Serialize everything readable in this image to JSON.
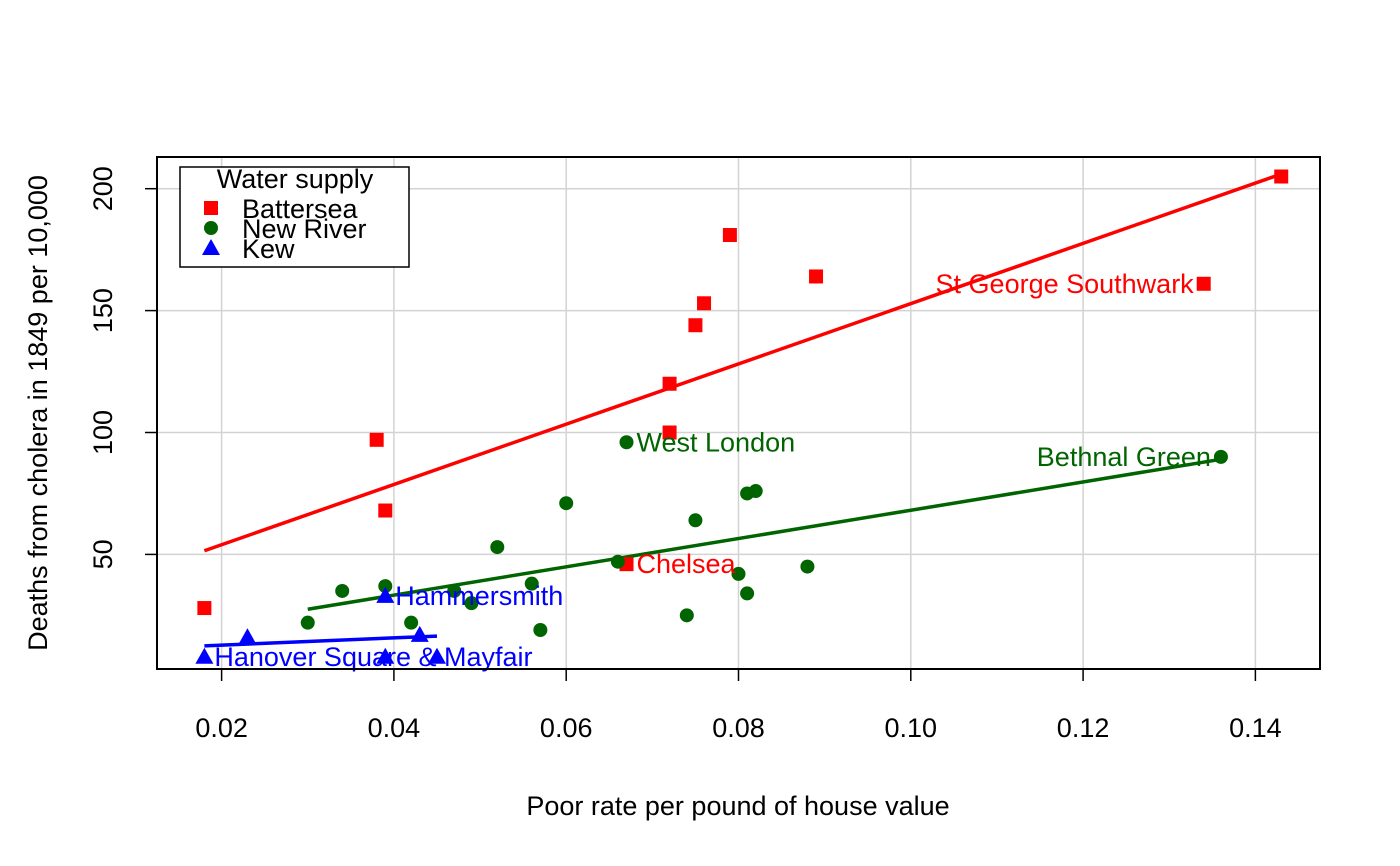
{
  "chart_data": {
    "type": "scatter",
    "title": "",
    "xlabel": "Poor rate per pound of house value",
    "ylabel": "Deaths from cholera in 1849 per 10,000",
    "xlim": [
      0.0125,
      0.1475
    ],
    "ylim": [
      3,
      213
    ],
    "xticks": [
      0.02,
      0.04,
      0.06,
      0.08,
      0.1,
      0.12,
      0.14
    ],
    "xtick_labels": [
      "0.02",
      "0.04",
      "0.06",
      "0.08",
      "0.10",
      "0.12",
      "0.14"
    ],
    "yticks": [
      50,
      100,
      150,
      200
    ],
    "ytick_labels": [
      "50",
      "100",
      "150",
      "200"
    ],
    "grid": true,
    "legend": {
      "title": "Water supply",
      "position": "top-left",
      "entries": [
        "Battersea",
        "New River",
        "Kew"
      ]
    },
    "series": [
      {
        "name": "Battersea",
        "color": "#ff0000",
        "marker": "square",
        "points": [
          {
            "x": 0.018,
            "y": 28
          },
          {
            "x": 0.038,
            "y": 97
          },
          {
            "x": 0.039,
            "y": 68
          },
          {
            "x": 0.067,
            "y": 46,
            "label": "Chelsea"
          },
          {
            "x": 0.072,
            "y": 100
          },
          {
            "x": 0.072,
            "y": 120
          },
          {
            "x": 0.075,
            "y": 144
          },
          {
            "x": 0.076,
            "y": 153
          },
          {
            "x": 0.079,
            "y": 181
          },
          {
            "x": 0.089,
            "y": 164
          },
          {
            "x": 0.134,
            "y": 161,
            "label": "St George Southwark"
          },
          {
            "x": 0.143,
            "y": 205
          }
        ],
        "fit": {
          "x": [
            0.018,
            0.143
          ],
          "y": [
            51.5,
            206
          ]
        }
      },
      {
        "name": "New River",
        "color": "#006400",
        "marker": "circle",
        "points": [
          {
            "x": 0.03,
            "y": 22
          },
          {
            "x": 0.034,
            "y": 35
          },
          {
            "x": 0.039,
            "y": 37
          },
          {
            "x": 0.042,
            "y": 22
          },
          {
            "x": 0.047,
            "y": 35
          },
          {
            "x": 0.049,
            "y": 30
          },
          {
            "x": 0.052,
            "y": 53
          },
          {
            "x": 0.056,
            "y": 38
          },
          {
            "x": 0.057,
            "y": 19
          },
          {
            "x": 0.06,
            "y": 71
          },
          {
            "x": 0.066,
            "y": 47
          },
          {
            "x": 0.067,
            "y": 96,
            "label": "West London"
          },
          {
            "x": 0.074,
            "y": 25
          },
          {
            "x": 0.075,
            "y": 64
          },
          {
            "x": 0.08,
            "y": 42
          },
          {
            "x": 0.081,
            "y": 34
          },
          {
            "x": 0.081,
            "y": 75
          },
          {
            "x": 0.082,
            "y": 76
          },
          {
            "x": 0.088,
            "y": 45
          },
          {
            "x": 0.136,
            "y": 90,
            "label": "Bethnal Green"
          }
        ],
        "fit": {
          "x": [
            0.03,
            0.136
          ],
          "y": [
            27.5,
            89
          ]
        }
      },
      {
        "name": "Kew",
        "color": "#0000ff",
        "marker": "triangle",
        "points": [
          {
            "x": 0.018,
            "y": 8,
            "label": "Hanover Square & Mayfair"
          },
          {
            "x": 0.023,
            "y": 16
          },
          {
            "x": 0.039,
            "y": 33,
            "label": "Hammersmith"
          },
          {
            "x": 0.039,
            "y": 8
          },
          {
            "x": 0.043,
            "y": 17
          },
          {
            "x": 0.045,
            "y": 8
          }
        ],
        "fit": {
          "x": [
            0.018,
            0.045
          ],
          "y": [
            12.5,
            16.5
          ]
        }
      }
    ]
  }
}
